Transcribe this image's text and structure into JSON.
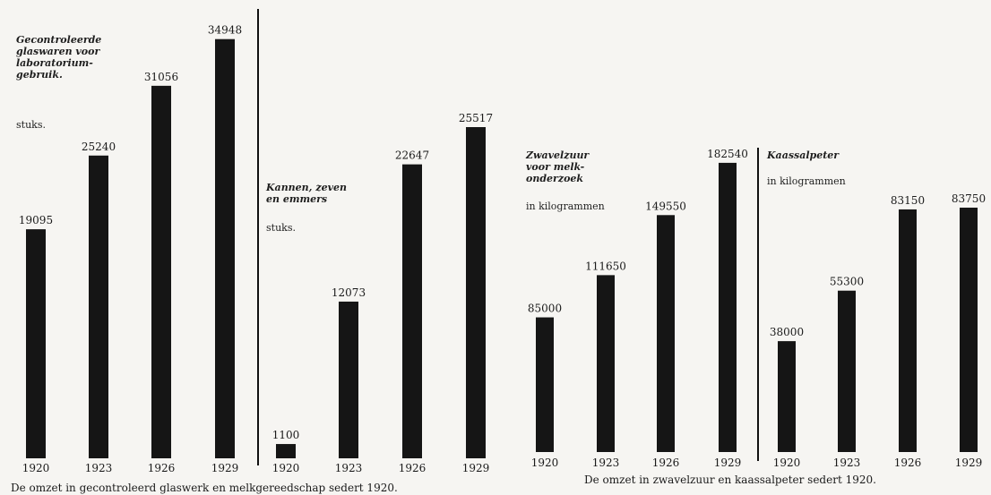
{
  "chart_data": [
    {
      "type": "bar",
      "title": "Gecontroleerde\nglaswaren voor\nlaboratorium-\ngebruik.",
      "unit": "stuks.",
      "categories": [
        "1920",
        "1923",
        "1926",
        "1929"
      ],
      "values": [
        19095,
        25240,
        31056,
        34948
      ],
      "value_labels": [
        "19095",
        "25240",
        "31056",
        "34948"
      ]
    },
    {
      "type": "bar",
      "title": "Kannen, zeven\nen emmers",
      "unit": "stuks.",
      "categories": [
        "1920",
        "1923",
        "1926",
        "1929"
      ],
      "values": [
        1100,
        12073,
        22647,
        25517
      ],
      "value_labels": [
        "1100",
        "12073",
        "22647",
        "25517"
      ]
    },
    {
      "type": "bar",
      "title": "Zwavelzuur\nvoor melk-\nonderzoek",
      "unit": "in kilogrammen",
      "categories": [
        "1920",
        "1923",
        "1926",
        "1929"
      ],
      "values": [
        85000,
        111650,
        149550,
        182540
      ],
      "value_labels": [
        "85000",
        "111650",
        "149550",
        "182540"
      ]
    },
    {
      "type": "bar",
      "title": "Kaassalpeter",
      "unit": "in kilogrammen",
      "categories": [
        "1920",
        "1923",
        "1926",
        "1929"
      ],
      "values": [
        38000,
        55300,
        83150,
        83750
      ],
      "value_labels": [
        "38000",
        "55300",
        "83150",
        "83750"
      ]
    }
  ],
  "captions": {
    "left": "De  omzet   in  gecontroleerd  glaswerk  en  melkgereedschap  sedert  1920.",
    "right": "De  omzet  in  zwavelzuur  en  kaassalpeter  sedert  1920."
  },
  "colors": {
    "bar": "#151515",
    "paper": "#f6f5f2"
  }
}
